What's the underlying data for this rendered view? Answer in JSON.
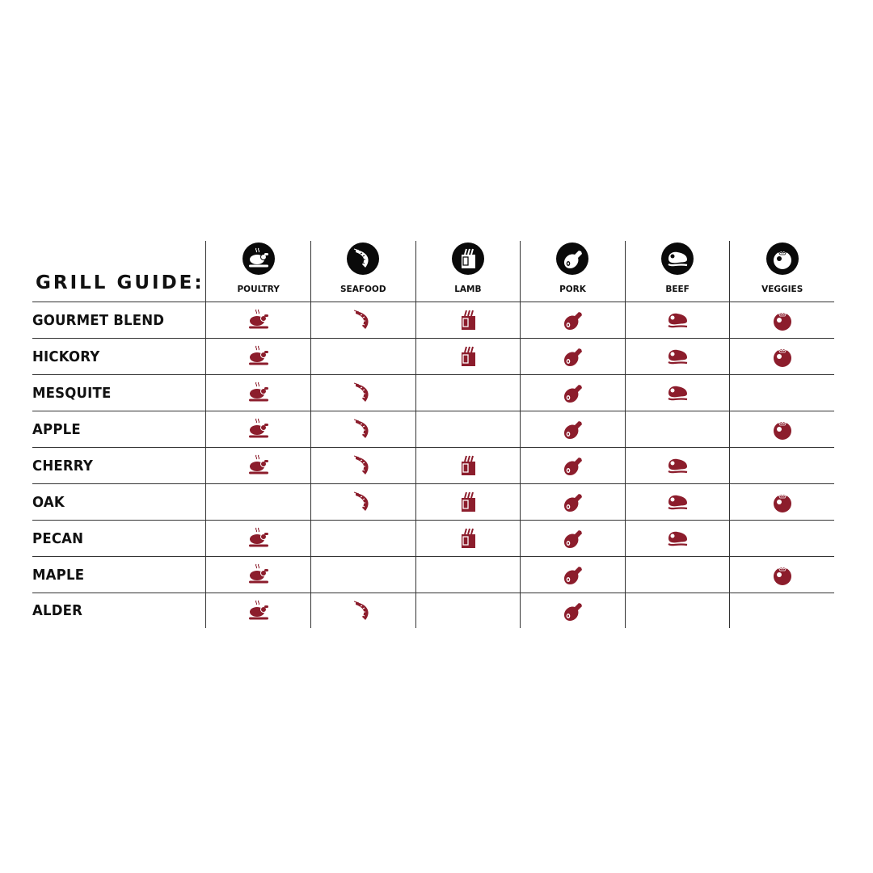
{
  "title": "GRILL GUIDE:",
  "colors": {
    "icon": "#8c1d2c",
    "header_circle": "#0a0a0a",
    "grid": "#333333"
  },
  "categories": [
    {
      "label": "POULTRY",
      "icon": "roast-chicken-icon"
    },
    {
      "label": "SEAFOOD",
      "icon": "shrimp-icon"
    },
    {
      "label": "LAMB",
      "icon": "lamb-rack-icon"
    },
    {
      "label": "PORK",
      "icon": "ham-icon"
    },
    {
      "label": "BEEF",
      "icon": "steak-icon"
    },
    {
      "label": "VEGGIES",
      "icon": "tomato-icon"
    }
  ],
  "woods": [
    {
      "name": "GOURMET BLEND",
      "pairs": [
        true,
        true,
        true,
        true,
        true,
        true
      ]
    },
    {
      "name": "HICKORY",
      "pairs": [
        true,
        false,
        true,
        true,
        true,
        true
      ]
    },
    {
      "name": "MESQUITE",
      "pairs": [
        true,
        true,
        false,
        true,
        true,
        false
      ]
    },
    {
      "name": "APPLE",
      "pairs": [
        true,
        true,
        false,
        true,
        false,
        true
      ]
    },
    {
      "name": "CHERRY",
      "pairs": [
        true,
        true,
        true,
        true,
        true,
        false
      ]
    },
    {
      "name": "OAK",
      "pairs": [
        false,
        true,
        true,
        true,
        true,
        true
      ]
    },
    {
      "name": "PECAN",
      "pairs": [
        true,
        false,
        true,
        true,
        true,
        false
      ]
    },
    {
      "name": "MAPLE",
      "pairs": [
        true,
        false,
        false,
        true,
        false,
        true
      ]
    },
    {
      "name": "ALDER",
      "pairs": [
        true,
        true,
        false,
        true,
        false,
        false
      ]
    }
  ]
}
